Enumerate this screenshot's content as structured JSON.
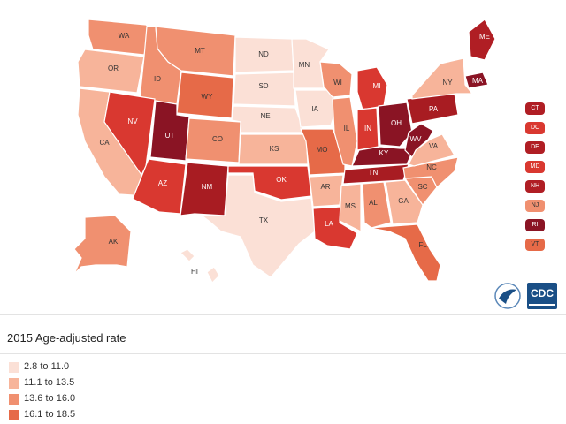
{
  "map": {
    "states": [
      {
        "abbr": "WA",
        "color": "#f09070"
      },
      {
        "abbr": "OR",
        "color": "#f7b49a"
      },
      {
        "abbr": "CA",
        "color": "#f7b49a"
      },
      {
        "abbr": "ID",
        "color": "#f09070"
      },
      {
        "abbr": "NV",
        "color": "#d93830"
      },
      {
        "abbr": "MT",
        "color": "#f09070"
      },
      {
        "abbr": "WY",
        "color": "#e66a48"
      },
      {
        "abbr": "UT",
        "color": "#8a1424"
      },
      {
        "abbr": "AZ",
        "color": "#d93830"
      },
      {
        "abbr": "CO",
        "color": "#f09070"
      },
      {
        "abbr": "NM",
        "color": "#a81c22"
      },
      {
        "abbr": "ND",
        "color": "#fbe0d6"
      },
      {
        "abbr": "SD",
        "color": "#fbe0d6"
      },
      {
        "abbr": "NE",
        "color": "#fbe0d6"
      },
      {
        "abbr": "KS",
        "color": "#f7b49a"
      },
      {
        "abbr": "OK",
        "color": "#d93830"
      },
      {
        "abbr": "TX",
        "color": "#fbe0d6"
      },
      {
        "abbr": "MN",
        "color": "#fbe0d6"
      },
      {
        "abbr": "IA",
        "color": "#fbe0d6"
      },
      {
        "abbr": "MO",
        "color": "#e66a48"
      },
      {
        "abbr": "AR",
        "color": "#f7b49a"
      },
      {
        "abbr": "LA",
        "color": "#d93830"
      },
      {
        "abbr": "WI",
        "color": "#f09070"
      },
      {
        "abbr": "IL",
        "color": "#f09070"
      },
      {
        "abbr": "MI",
        "color": "#d93830"
      },
      {
        "abbr": "IN",
        "color": "#d93830"
      },
      {
        "abbr": "OH",
        "color": "#8a1424"
      },
      {
        "abbr": "KY",
        "color": "#8a1424"
      },
      {
        "abbr": "TN",
        "color": "#a81c22"
      },
      {
        "abbr": "MS",
        "color": "#f7b49a"
      },
      {
        "abbr": "AL",
        "color": "#f09070"
      },
      {
        "abbr": "GA",
        "color": "#f7b49a"
      },
      {
        "abbr": "FL",
        "color": "#e66a48"
      },
      {
        "abbr": "SC",
        "color": "#f09070"
      },
      {
        "abbr": "NC",
        "color": "#f09070"
      },
      {
        "abbr": "VA",
        "color": "#f7b49a"
      },
      {
        "abbr": "WV",
        "color": "#8a1424"
      },
      {
        "abbr": "PA",
        "color": "#a81c22"
      },
      {
        "abbr": "NY",
        "color": "#f7b49a"
      },
      {
        "abbr": "ME",
        "color": "#b01e24"
      },
      {
        "abbr": "MA",
        "color": "#8a1424"
      },
      {
        "abbr": "AK",
        "color": "#f09070"
      },
      {
        "abbr": "HI",
        "color": "#fbe0d6"
      }
    ],
    "side_states": [
      {
        "abbr": "CT",
        "color": "#b01e24"
      },
      {
        "abbr": "DC",
        "color": "#d93830"
      },
      {
        "abbr": "DE",
        "color": "#b01e24"
      },
      {
        "abbr": "MD",
        "color": "#d93830"
      },
      {
        "abbr": "NH",
        "color": "#b01e24"
      },
      {
        "abbr": "NJ",
        "color": "#f09070"
      },
      {
        "abbr": "RI",
        "color": "#8a1424"
      },
      {
        "abbr": "VT",
        "color": "#e66a48"
      }
    ],
    "logo_text": "CDC"
  },
  "legend": {
    "title": "2015 Age-adjusted rate",
    "items": [
      {
        "label": "2.8 to 11.0",
        "color": "#fbe0d6"
      },
      {
        "label": "11.1 to 13.5",
        "color": "#f7b49a"
      },
      {
        "label": "13.6 to 16.0",
        "color": "#f09070"
      },
      {
        "label": "16.1 to 18.5",
        "color": "#e66a48"
      }
    ]
  }
}
